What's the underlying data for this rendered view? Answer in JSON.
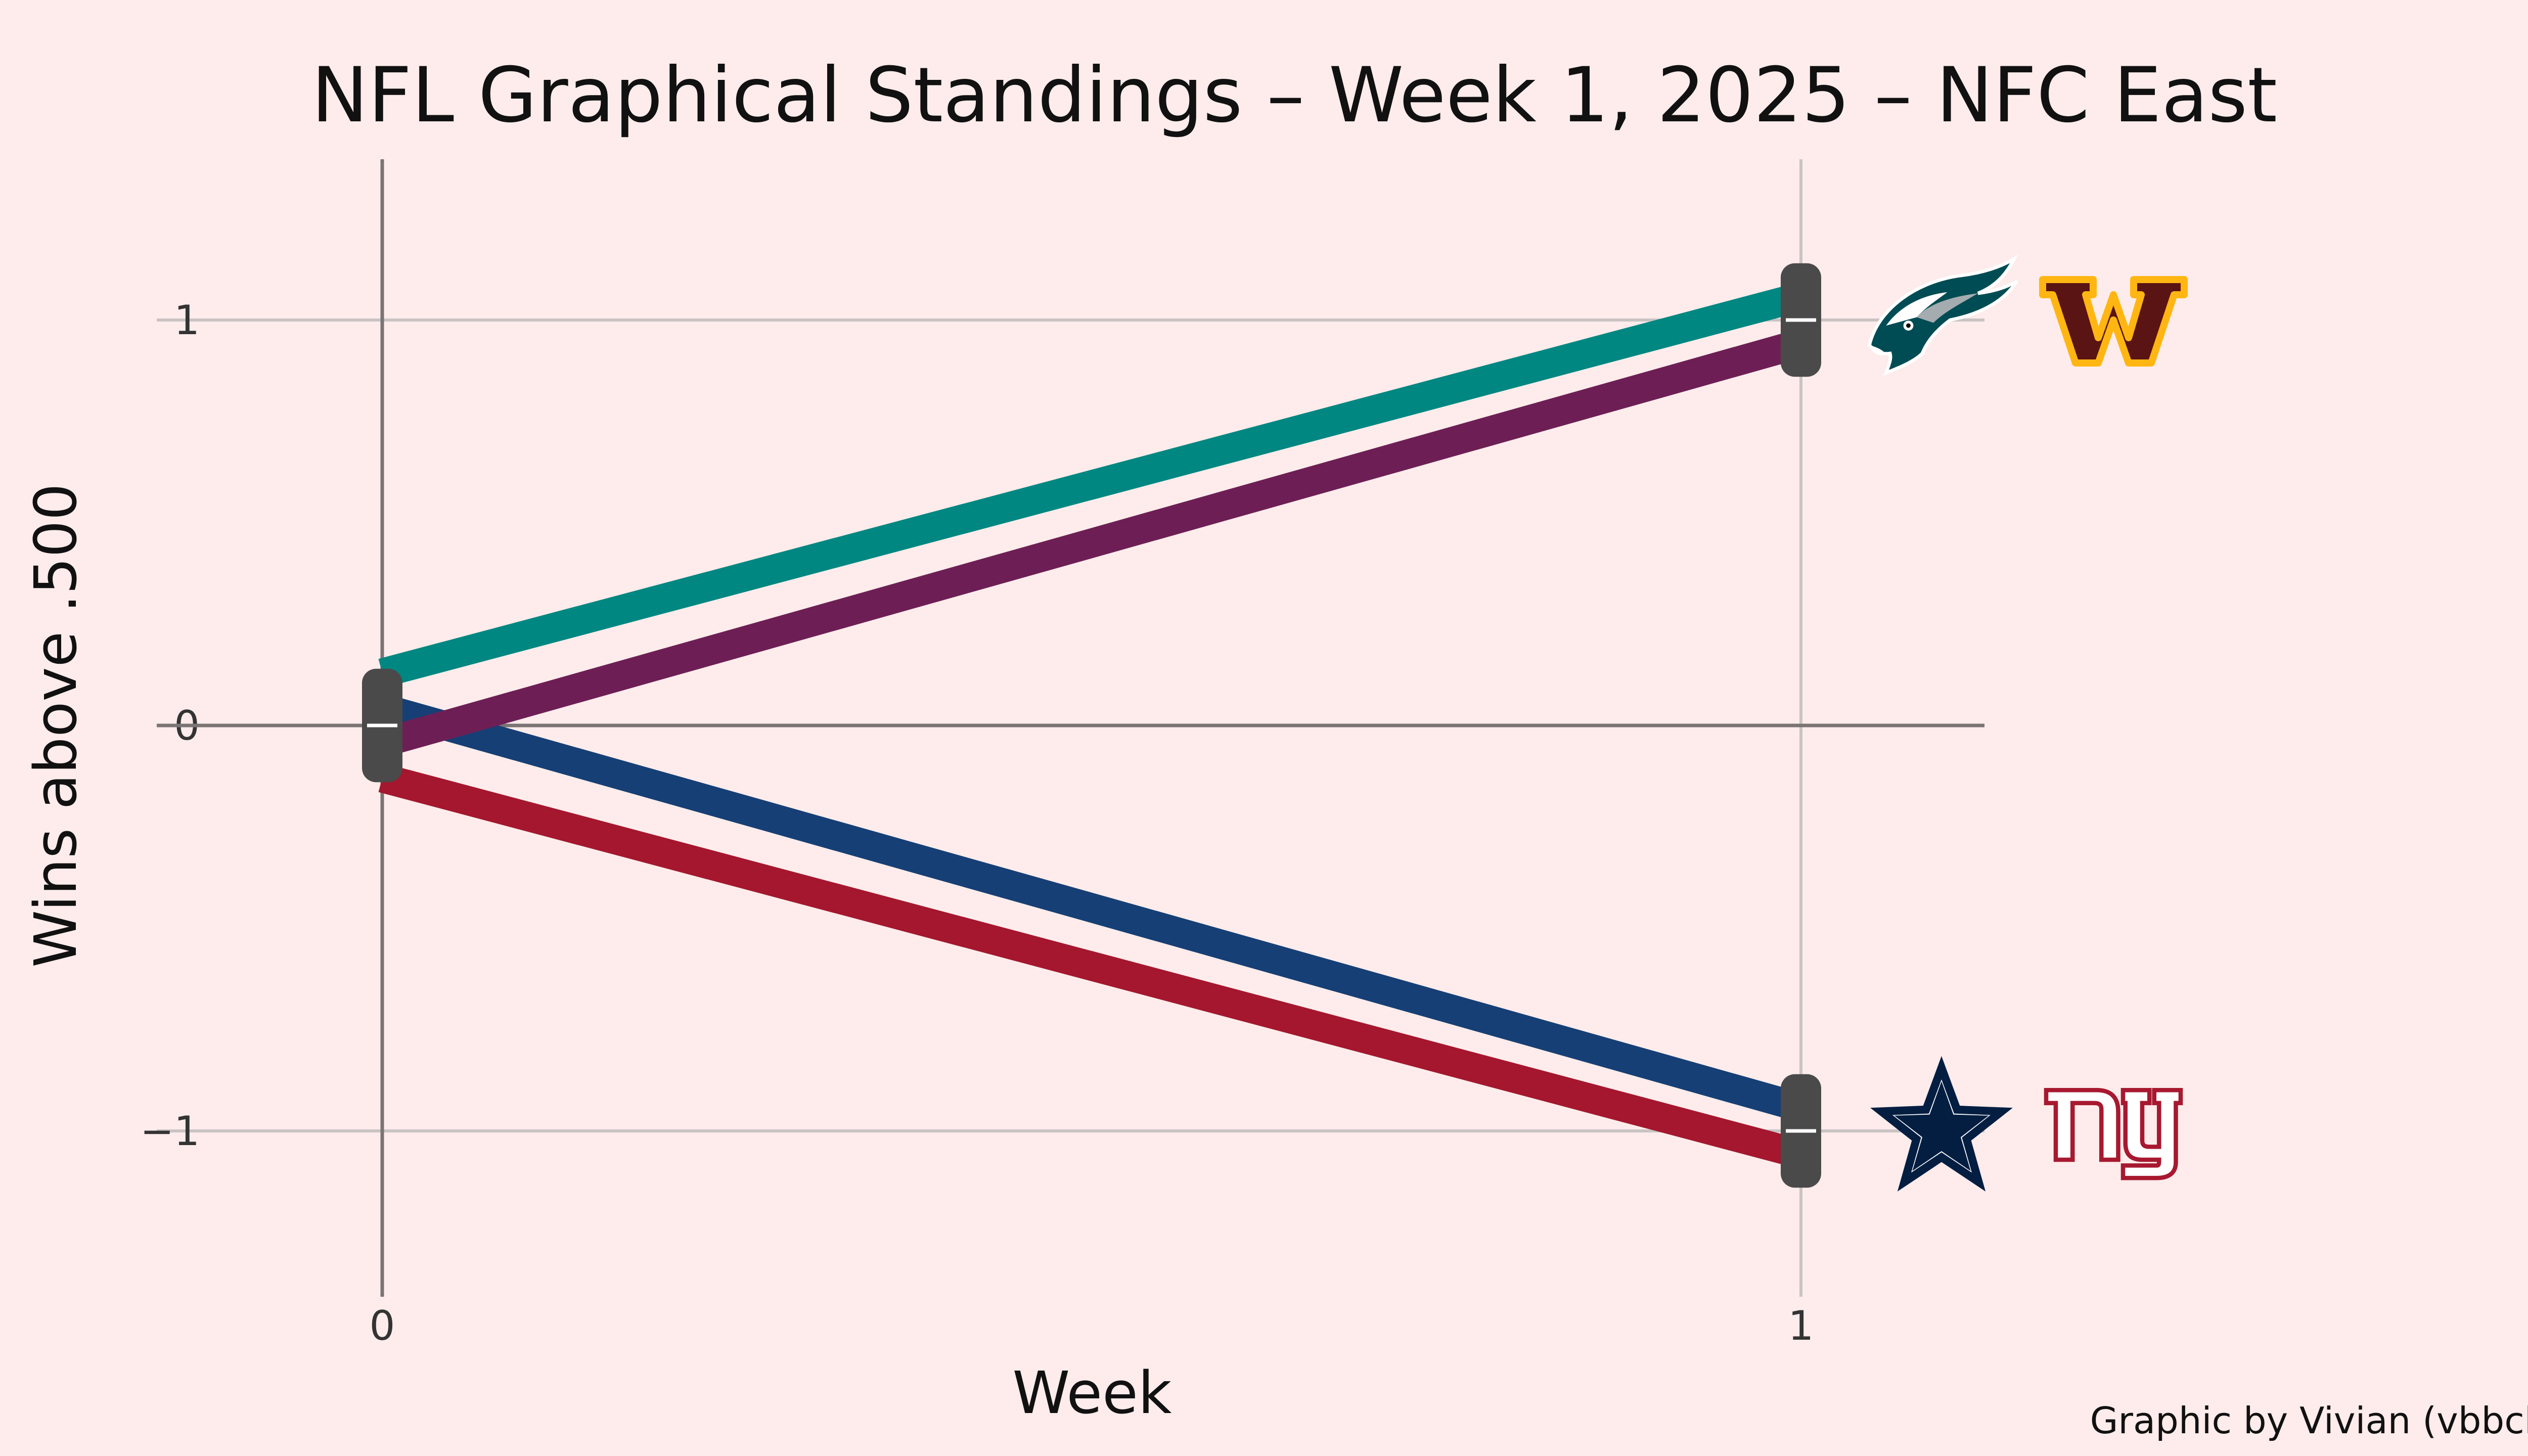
{
  "chart_data": {
    "type": "line",
    "title": "NFL Graphical Standings – Week 1, 2025 – NFC East",
    "xlabel": "Week",
    "ylabel": "Wins above .500",
    "x": [
      0,
      1
    ],
    "xticks": [
      "0",
      "1"
    ],
    "yticks": [
      {
        "value": 1,
        "label": "1"
      },
      {
        "value": 0,
        "label": "0"
      },
      {
        "value": -1,
        "label": "−1"
      }
    ],
    "xlim": [
      -0.27,
      1.3
    ],
    "ylim": [
      -1.45,
      1.4
    ],
    "grid": true,
    "series": [
      {
        "name": "Philadelphia Eagles",
        "values": [
          0,
          1
        ],
        "color": "#008781",
        "logo": "eagles-logo-icon"
      },
      {
        "name": "Washington Commanders",
        "values": [
          0,
          1
        ],
        "color": "#6d1f55",
        "logo": "commanders-logo-icon"
      },
      {
        "name": "Dallas Cowboys",
        "values": [
          0,
          -1
        ],
        "color": "#163f75",
        "logo": "cowboys-logo-icon"
      },
      {
        "name": "New York Giants",
        "values": [
          0,
          -1
        ],
        "color": "#a4172e",
        "logo": "giants-logo-icon"
      }
    ],
    "credit": "Graphic by Vivian (vbbcla)",
    "marker_color": "#4a4a4a",
    "logo_colors": {
      "commanders_primary": "#5a1414",
      "commanders_secondary": "#ffb612",
      "cowboys": "#041e42",
      "giants": "#a71930"
    }
  }
}
